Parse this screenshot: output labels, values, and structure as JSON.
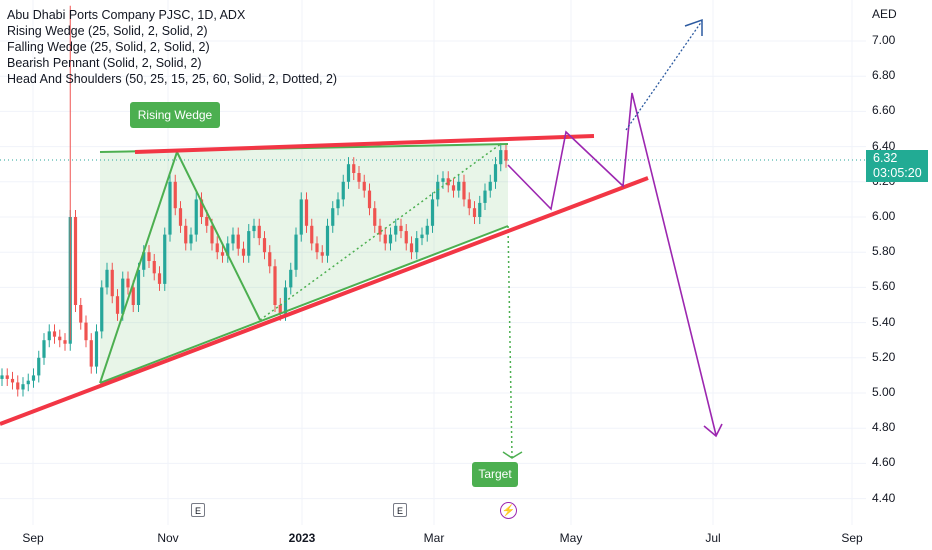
{
  "chart": {
    "symbol_line": "Abu Dhabi Ports Company PJSC, 1D, ADX",
    "indicators": [
      "Rising Wedge (25, Solid, 2, Solid, 2)",
      "Falling Wedge (25, Solid, 2, Solid, 2)",
      "Bearish Pennant (Solid, 2, Solid, 2)",
      "Head And Shoulders (50, 25, 15, 25, 60, Solid, 2, Dotted, 2)"
    ],
    "currency": "AED",
    "price_ticks": [
      "7.00",
      "6.80",
      "6.60",
      "6.40",
      "6.20",
      "6.00",
      "5.80",
      "5.60",
      "5.40",
      "5.20",
      "5.00",
      "4.80",
      "4.60",
      "4.40"
    ],
    "time_ticks": [
      {
        "label": "Sep",
        "bold": false
      },
      {
        "label": "Nov",
        "bold": false
      },
      {
        "label": "2023",
        "bold": true
      },
      {
        "label": "Mar",
        "bold": false
      },
      {
        "label": "May",
        "bold": false
      },
      {
        "label": "Jul",
        "bold": false
      },
      {
        "label": "Sep",
        "bold": false
      }
    ],
    "last_price": "6.32",
    "countdown": "03:05:20",
    "rising_wedge_label": "Rising Wedge",
    "target_label": "Target",
    "event_marker_label": "E",
    "flash_icon": "lightning-icon"
  },
  "colors": {
    "up": "#26a69a",
    "down": "#ef5350",
    "wedge": "#4caf50",
    "trend_red": "#f23645",
    "purple": "#9c27b0",
    "blue": "#2962ff"
  },
  "chart_data": {
    "type": "candlestick",
    "title": "Abu Dhabi Ports Company PJSC, 1D, ADX",
    "ylabel": "AED",
    "ylim": [
      4.35,
      7.15
    ],
    "last_price": 6.32,
    "closes": [
      5.1,
      5.08,
      5.06,
      5.02,
      5.05,
      5.07,
      5.1,
      5.2,
      5.3,
      5.35,
      5.32,
      5.3,
      5.28,
      6.0,
      5.5,
      5.4,
      5.3,
      5.15,
      5.35,
      5.6,
      5.7,
      5.55,
      5.45,
      5.65,
      5.6,
      5.5,
      5.7,
      5.8,
      5.75,
      5.68,
      5.62,
      5.9,
      6.2,
      6.05,
      5.95,
      5.85,
      5.9,
      6.1,
      6.0,
      5.95,
      5.85,
      5.8,
      5.78,
      5.85,
      5.9,
      5.82,
      5.78,
      5.92,
      5.95,
      5.88,
      5.8,
      5.72,
      5.5,
      5.45,
      5.6,
      5.7,
      5.9,
      6.1,
      5.95,
      5.85,
      5.8,
      5.78,
      5.95,
      6.05,
      6.1,
      6.2,
      6.3,
      6.25,
      6.2,
      6.15,
      6.05,
      5.95,
      5.9,
      5.85,
      5.9,
      5.95,
      5.92,
      5.85,
      5.8,
      5.88,
      5.9,
      5.95,
      6.1,
      6.2,
      6.22,
      6.18,
      6.15,
      6.2,
      6.1,
      6.05,
      6.0,
      6.08,
      6.15,
      6.2,
      6.3,
      6.38,
      6.32
    ]
  }
}
